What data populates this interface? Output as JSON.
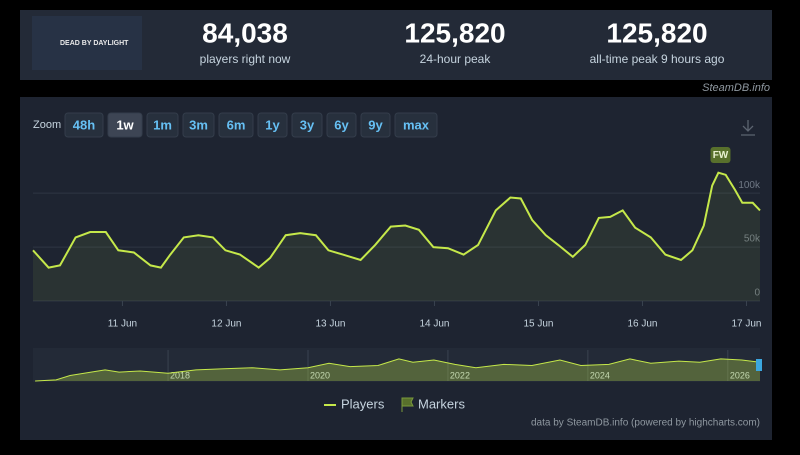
{
  "game": {
    "logo_text": "DEAD BY DAYLIGHT"
  },
  "header": {
    "stats": [
      {
        "value": "84,038",
        "label": "players right now"
      },
      {
        "value": "125,820",
        "label": "24-hour peak"
      },
      {
        "value": "125,820",
        "label": "all-time peak 9 hours ago"
      }
    ]
  },
  "source": "SteamDB.info",
  "zoom": {
    "label": "Zoom",
    "buttons": [
      "48h",
      "1w",
      "1m",
      "3m",
      "6m",
      "1y",
      "3y",
      "6y",
      "9y",
      "max"
    ],
    "active": "1w"
  },
  "footer": "data by SteamDB.info (powered by highcharts.com)",
  "chart_data": [
    {
      "type": "line",
      "x": [
        10.14,
        10.29,
        10.4,
        10.55,
        10.69,
        10.84,
        10.96,
        11.11,
        11.27,
        11.37,
        11.46,
        11.59,
        11.73,
        11.87,
        11.99,
        12.13,
        12.31,
        12.42,
        12.57,
        12.71,
        12.86,
        12.98,
        13.12,
        13.29,
        13.43,
        13.58,
        13.72,
        13.85,
        13.99,
        14.13,
        14.28,
        14.42,
        14.59,
        14.73,
        14.83,
        14.94,
        15.07,
        15.19,
        15.33,
        15.45,
        15.58,
        15.69,
        15.81,
        15.93,
        16.08,
        16.22,
        16.37,
        16.48,
        16.59,
        16.67,
        16.73,
        16.8,
        16.89,
        16.96,
        17.06,
        17.13
      ],
      "series": [
        {
          "name": "Players",
          "color": "#c5e84a",
          "values": [
            47000,
            31000,
            33000,
            59000,
            64000,
            64000,
            47000,
            45000,
            33000,
            31000,
            43000,
            59000,
            61000,
            59000,
            47000,
            43000,
            31000,
            40000,
            61000,
            63000,
            61000,
            47000,
            43000,
            38000,
            52000,
            69000,
            70000,
            66000,
            50000,
            49000,
            43000,
            52000,
            84000,
            96000,
            95000,
            75000,
            61000,
            52000,
            41000,
            52000,
            77000,
            78000,
            84000,
            68000,
            59000,
            43000,
            38000,
            47000,
            70000,
            107000,
            119000,
            117000,
            103000,
            91000,
            91000,
            84000
          ]
        }
      ],
      "markers": {
        "name": "Markers",
        "color": "#58702c",
        "points": [
          {
            "x": 16.75,
            "label": "FW"
          }
        ]
      },
      "xlim": [
        10.14,
        17.13
      ],
      "xticks": [
        {
          "value": 11,
          "label": "11 Jun"
        },
        {
          "value": 12,
          "label": "12 Jun"
        },
        {
          "value": 13,
          "label": "13 Jun"
        },
        {
          "value": 14,
          "label": "14 Jun"
        },
        {
          "value": 15,
          "label": "15 Jun"
        },
        {
          "value": 16,
          "label": "16 Jun"
        },
        {
          "value": 17,
          "label": "17 Jun"
        }
      ],
      "ylim": [
        0,
        140000
      ],
      "yticks": [
        0,
        {
          "value": 50000,
          "label": "50k"
        },
        {
          "value": 100000,
          "label": "100k"
        }
      ],
      "grid": true
    },
    {
      "type": "area",
      "x": [
        2016.1,
        2016.4,
        2016.6,
        2016.9,
        2017.1,
        2017.3,
        2017.6,
        2018.0,
        2018.4,
        2018.8,
        2019.2,
        2019.6,
        2020.0,
        2020.3,
        2020.6,
        2021.0,
        2021.3,
        2021.5,
        2021.8,
        2022.1,
        2022.4,
        2022.8,
        2023.2,
        2023.6,
        2023.9,
        2024.3,
        2024.6,
        2024.9,
        2025.3,
        2025.6,
        2025.9,
        2026.2,
        2026.46
      ],
      "series": [
        {
          "color": "#c5e84a",
          "values": [
            0,
            5000,
            25000,
            40000,
            50000,
            40000,
            45000,
            35000,
            50000,
            55000,
            60000,
            50000,
            60000,
            80000,
            65000,
            70000,
            100000,
            85000,
            95000,
            75000,
            60000,
            75000,
            70000,
            95000,
            70000,
            75000,
            100000,
            80000,
            90000,
            85000,
            100000,
            95000,
            85000
          ]
        }
      ],
      "xlim": [
        2016.07,
        2026.46
      ],
      "xticks": [
        2018,
        2020,
        2022,
        2024,
        2026
      ],
      "ylim": [
        0,
        140000
      ]
    }
  ]
}
